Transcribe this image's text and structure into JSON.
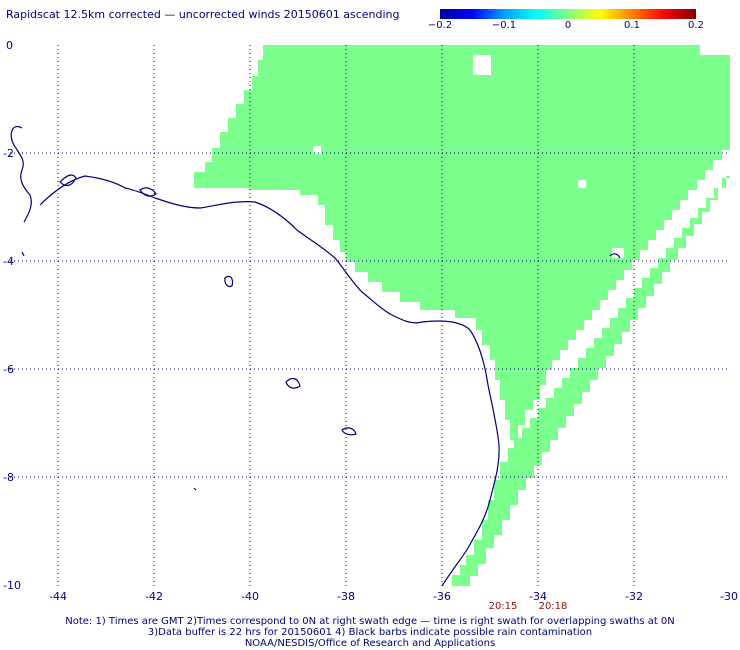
{
  "title": "Rapidscat 12.5km corrected — uncorrected winds 20150601 ascending",
  "colorbar": {
    "labels": [
      "−0.2",
      "−0.1",
      "0",
      "0.1",
      "0.2"
    ]
  },
  "axes": {
    "x_ticks": [
      "-44",
      "-42",
      "-40",
      "-38",
      "-36",
      "-34",
      "-32",
      "-30"
    ],
    "y_ticks": [
      "0",
      "-2",
      "-4",
      "-6",
      "-8",
      "-10"
    ],
    "x_range": [
      -45,
      -30
    ],
    "y_range": [
      0,
      -10
    ],
    "grid": "dotted"
  },
  "swath_times": [
    "20:15",
    "20:18"
  ],
  "colors": {
    "swath_fill": "#7cff8c",
    "coastline": "#000080",
    "grid": "#000080",
    "text": "#000080",
    "time_labels": "#a01010"
  },
  "notes": {
    "line1": "Note: 1) Times are GMT 2)Times correspond to 0N at right swath edge — time is right swath for overlapping swaths at 0N",
    "line2": "3)Data buffer is 22 hrs for 20150601 4) Black barbs indicate possible rain contamination",
    "line3": "NOAA/NESDIS/Office of Research and Applications"
  }
}
